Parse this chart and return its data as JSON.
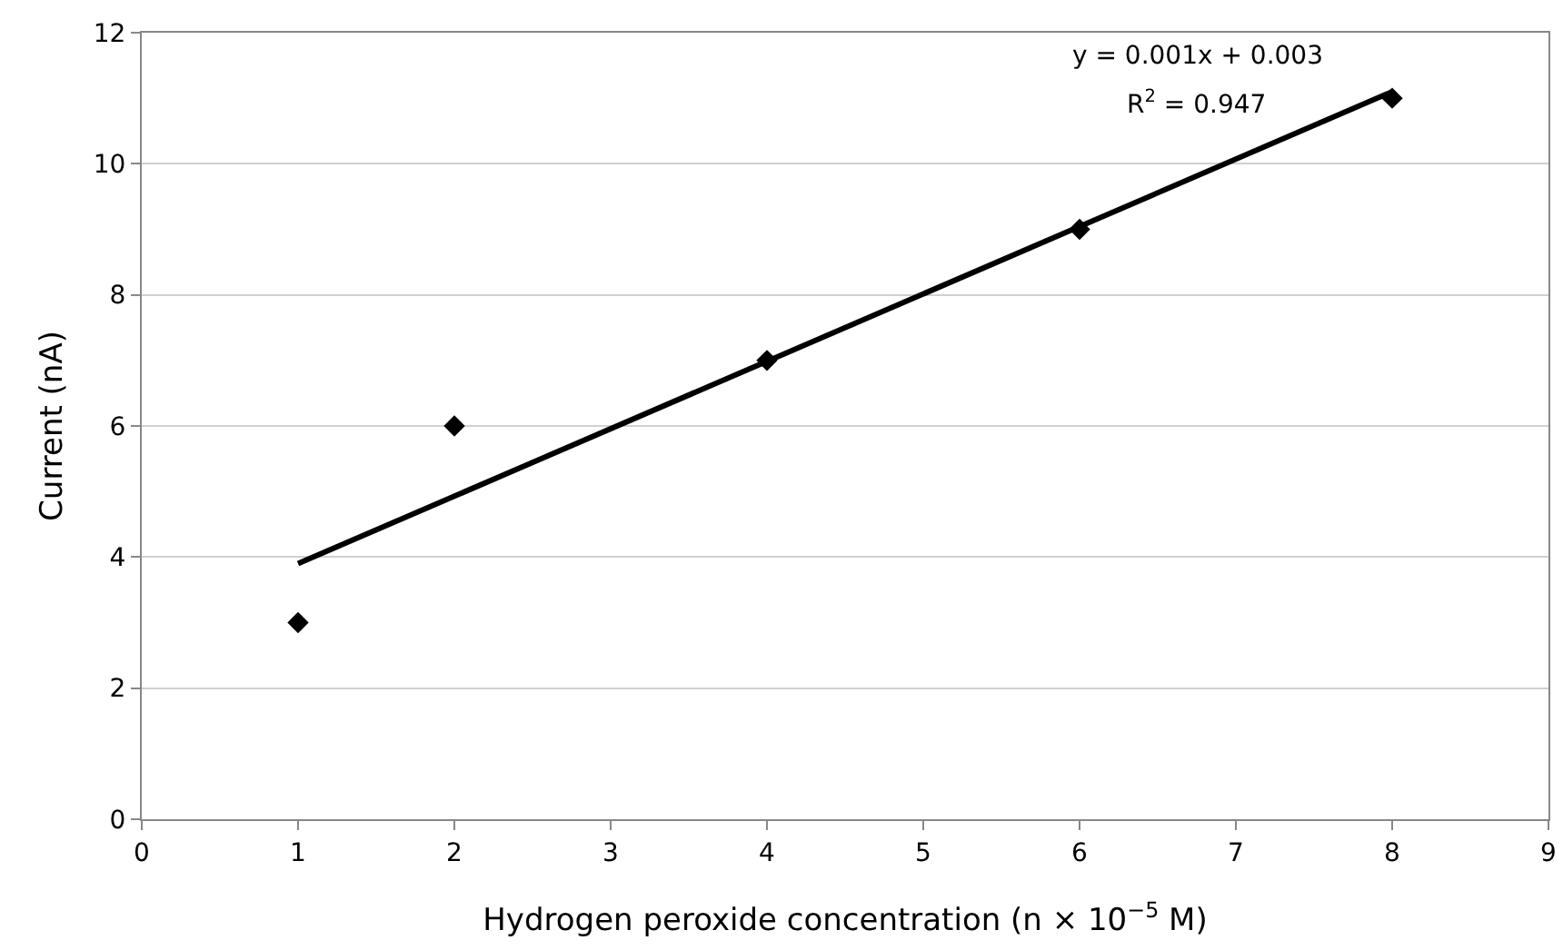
{
  "chart_data": {
    "type": "scatter",
    "xlabel": "Hydrogen peroxide concentration (n × 10$^{−5}$ M)",
    "ylabel": "Current (nA)",
    "x": [
      1,
      2,
      4,
      6,
      8
    ],
    "series": [
      {
        "color": "#000000",
        "values": [
          3,
          6,
          7,
          9,
          11
        ],
        "marker": "diamond"
      },
      {
        "type": "line",
        "color": "#000000",
        "x": [
          1,
          8
        ],
        "values": [
          3.9,
          11.1
        ],
        "marker": "none",
        "line_style": "solid"
      }
    ],
    "xlim": [
      0,
      9
    ],
    "xticks": [
      0,
      1,
      2,
      3,
      4,
      5,
      6,
      7,
      8,
      9
    ],
    "ylim": [
      0,
      12
    ],
    "yticks": [
      0,
      2,
      4,
      6,
      8,
      10,
      12
    ],
    "grid": "y",
    "annotations": [
      "y = 0.001x + 0.003",
      "R$^{2}$ = 0.947"
    ]
  }
}
